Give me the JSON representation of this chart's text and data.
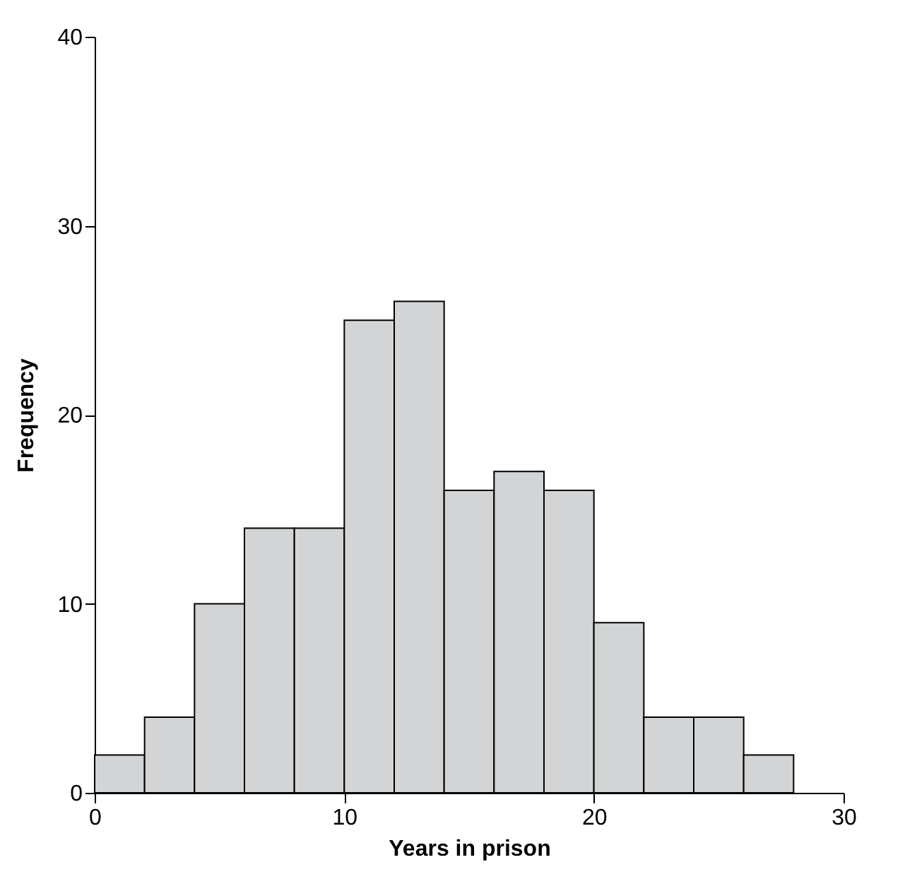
{
  "chart_data": {
    "type": "histogram",
    "xlabel": "Years in prison",
    "ylabel": "Frequency",
    "bins": [
      0,
      2,
      4,
      6,
      8,
      10,
      12,
      14,
      16,
      18,
      20,
      22,
      24,
      26,
      28
    ],
    "values": [
      2,
      4,
      10,
      14,
      14,
      25,
      26,
      16,
      17,
      16,
      9,
      4,
      4,
      2
    ],
    "color": "#d3d4d6",
    "xlim": [
      0,
      30
    ],
    "xticks": [
      0,
      10,
      20,
      30
    ],
    "ylim": [
      0,
      40
    ],
    "yticks": [
      0,
      10,
      20,
      30,
      40
    ],
    "grid": false
  }
}
